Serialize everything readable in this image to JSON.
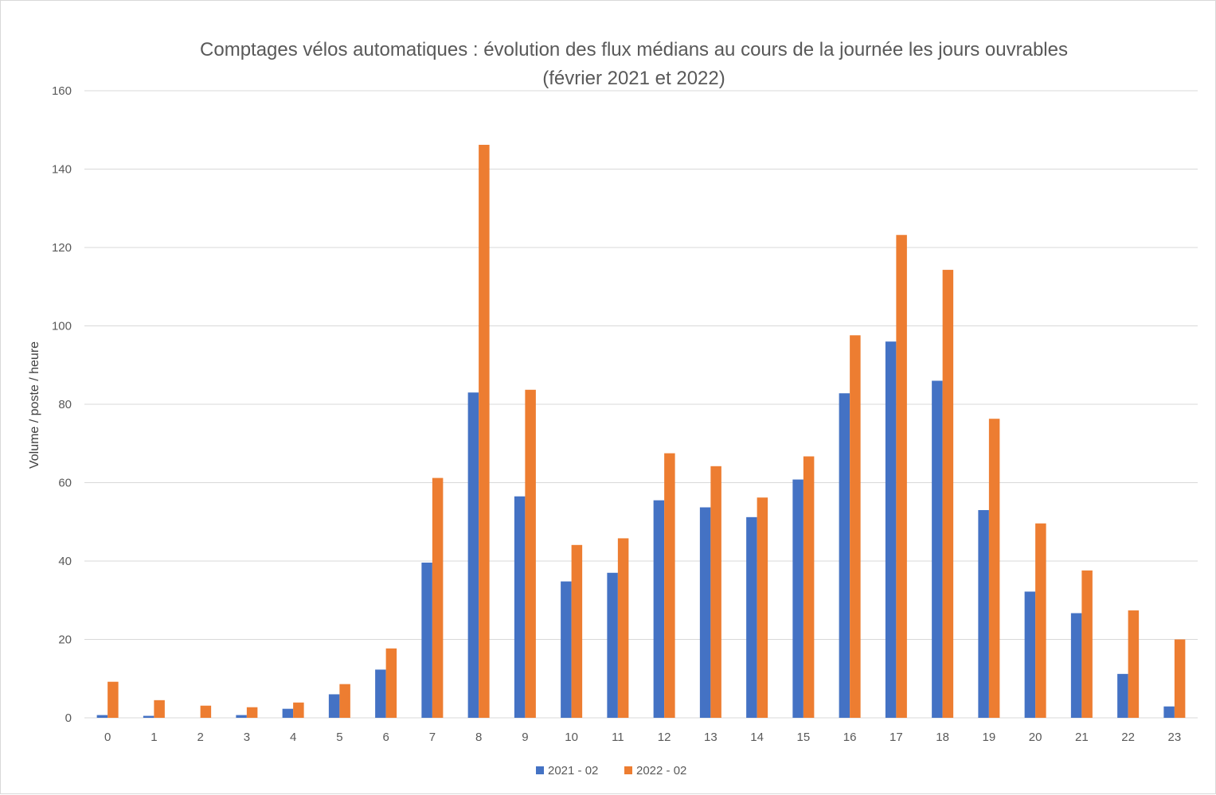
{
  "chart_data": {
    "type": "bar",
    "title": "Comptages vélos automatiques : évolution des flux médians au cours de la journée les jours ouvrables",
    "subtitle": "(février 2021 et 2022)",
    "xlabel": "",
    "ylabel": "Volume / poste / heure",
    "ylim": [
      0,
      160
    ],
    "yticks": [
      0,
      20,
      40,
      60,
      80,
      100,
      120,
      140,
      160
    ],
    "grid": true,
    "legend_position": "bottom",
    "categories": [
      "0",
      "1",
      "2",
      "3",
      "4",
      "5",
      "6",
      "7",
      "8",
      "9",
      "10",
      "11",
      "12",
      "13",
      "14",
      "15",
      "16",
      "17",
      "18",
      "19",
      "20",
      "21",
      "22",
      "23"
    ],
    "series": [
      {
        "name": "2021 - 02",
        "color": "#4472C4",
        "values": [
          0.7,
          0.5,
          0,
          0.7,
          2.3,
          6,
          12.3,
          39.6,
          83,
          56.5,
          34.8,
          37,
          55.5,
          53.7,
          51.2,
          60.8,
          82.8,
          96,
          86,
          53,
          32.2,
          26.7,
          11.2,
          2.9
        ]
      },
      {
        "name": "2022 - 02",
        "color": "#ED7D31",
        "values": [
          9.2,
          4.5,
          3.1,
          2.7,
          3.9,
          8.6,
          17.7,
          61.2,
          146.2,
          83.7,
          44.1,
          45.8,
          67.5,
          64.2,
          56.2,
          66.7,
          97.6,
          123.2,
          114.3,
          76.3,
          49.6,
          37.6,
          27.4,
          20
        ]
      }
    ]
  }
}
